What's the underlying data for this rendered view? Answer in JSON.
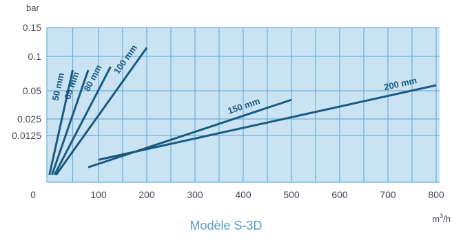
{
  "chart_data": {
    "type": "line",
    "title": "",
    "caption": "Modèle S-3D",
    "ylabel": "bar",
    "xlabel_base": "m",
    "xlabel_sup": "3",
    "xlabel_tail": "/h",
    "xlim": [
      0,
      800
    ],
    "x_ticks": [
      "0",
      "100",
      "200",
      "300",
      "400",
      "500",
      "600",
      "700",
      "800"
    ],
    "y_ticks": [
      {
        "label": "0.15",
        "value": 0.15
      },
      {
        "label": "0.1",
        "value": 0.1
      },
      {
        "label": "0.05",
        "value": 0.05
      },
      {
        "label": "0.025",
        "value": 0.025
      },
      {
        "label": "0.0125",
        "value": 0.0125
      }
    ],
    "grid": true,
    "series": [
      {
        "name": "50 mm",
        "x": [
          5,
          50
        ],
        "y": [
          0.002,
          0.08
        ]
      },
      {
        "name": "65 mm",
        "x": [
          10,
          80
        ],
        "y": [
          0.002,
          0.08
        ]
      },
      {
        "name": "80 mm",
        "x": [
          15,
          125
        ],
        "y": [
          0.002,
          0.085
        ]
      },
      {
        "name": "100 mm",
        "x": [
          18,
          200
        ],
        "y": [
          0.002,
          0.115
        ]
      },
      {
        "name": "150 mm",
        "x": [
          80,
          500
        ],
        "y": [
          0.004,
          0.042
        ]
      },
      {
        "name": "200 mm",
        "x": [
          100,
          800
        ],
        "y": [
          0.006,
          0.058
        ]
      }
    ]
  },
  "colors": {
    "plot_background": "#c9e3f3",
    "grid": "#6ab0da",
    "line": "#1b5a80"
  }
}
